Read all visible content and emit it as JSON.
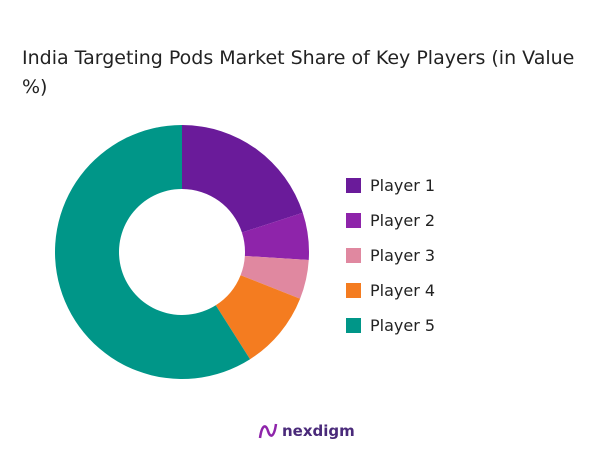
{
  "chart_data": {
    "type": "pie",
    "title": "India Targeting Pods Market Share of Key Players (in Value %)",
    "categories": [
      "Player 1",
      "Player 2",
      "Player 3",
      "Player 4",
      "Player 5"
    ],
    "values": [
      20,
      6,
      5,
      10,
      59
    ],
    "colors": [
      "#6a1b9a",
      "#8e24aa",
      "#e088a0",
      "#f47c20",
      "#009688"
    ],
    "donut": true,
    "legend": "right"
  },
  "logo": {
    "text": "nexdigm"
  }
}
